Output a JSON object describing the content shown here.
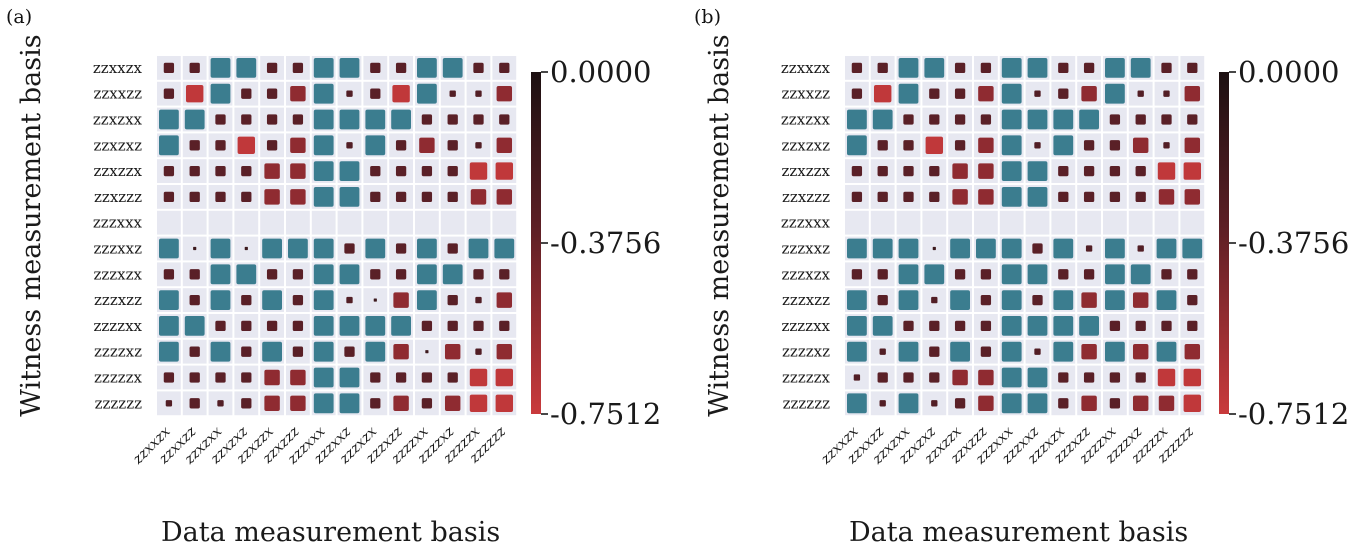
{
  "chart_data": [
    {
      "panel_label": "(a)",
      "type": "heatmap",
      "xlabel": "Data measurement basis",
      "ylabel": "Witness measurement basis",
      "x_tick_labels": [
        "ZZXXZX",
        "ZZXXZZ",
        "ZZXZXX",
        "ZZXZXZ",
        "ZZXZZX",
        "ZZXZZZ",
        "ZZZXXX",
        "ZZZXXZ",
        "ZZZXZX",
        "ZZZXZZ",
        "ZZZZXX",
        "ZZZZXZ",
        "ZZZZZX",
        "ZZZZZZ"
      ],
      "y_tick_labels": [
        "ZZXXZX",
        "ZZXXZZ",
        "ZZXZXX",
        "ZZXZXZ",
        "ZZXZZX",
        "ZZXZZZ",
        "ZZZXXX",
        "ZZZXXZ",
        "ZZZXZX",
        "ZZZXZZ",
        "ZZZZXX",
        "ZZZZXZ",
        "ZZZZZX",
        "ZZZZZZ"
      ],
      "colorbar": {
        "min": -0.7512,
        "max": 0.0,
        "tick_labels": [
          "0.0000",
          "-0.3756",
          "-0.7512"
        ]
      },
      "positive_color": "#3b7d8f",
      "cells": [
        [
          "n",
          "n",
          "b",
          "b",
          "n",
          "n",
          "b",
          "b",
          "n",
          "n",
          "b",
          "b",
          "n",
          "n"
        ],
        [
          "n",
          "R",
          "b",
          "n",
          "n",
          "r",
          "b",
          "s",
          "n",
          "R",
          "b",
          "s",
          "s",
          "r"
        ],
        [
          "b",
          "b",
          "n",
          "n",
          "n",
          "n",
          "b",
          "b",
          "b",
          "b",
          "n",
          "n",
          "n",
          "n"
        ],
        [
          "b",
          "n",
          "n",
          "R",
          "n",
          "r",
          "b",
          "s",
          "b",
          "n",
          "r",
          "n",
          "s",
          "r"
        ],
        [
          "n",
          "n",
          "n",
          "n",
          "r",
          "r",
          "b",
          "b",
          "n",
          "n",
          "n",
          "n",
          "R",
          "R"
        ],
        [
          "n",
          "n",
          "n",
          "n",
          "r",
          "r",
          "b",
          "b",
          "n",
          "n",
          "n",
          "n",
          "r",
          "r"
        ],
        [
          "",
          "",
          "",
          "",
          "",
          "",
          "",
          "",
          "",
          "",
          "",
          "",
          "",
          ""
        ],
        [
          "b",
          "x",
          "b",
          "x",
          "b",
          "b",
          "b",
          "n",
          "b",
          "n",
          "b",
          "n",
          "b",
          "b"
        ],
        [
          "n",
          "n",
          "b",
          "b",
          "n",
          "n",
          "b",
          "b",
          "n",
          "n",
          "b",
          "b",
          "n",
          "n"
        ],
        [
          "b",
          "n",
          "b",
          "n",
          "b",
          "n",
          "b",
          "s",
          "x",
          "r",
          "b",
          "n",
          "s",
          "r"
        ],
        [
          "b",
          "b",
          "n",
          "n",
          "n",
          "n",
          "b",
          "b",
          "b",
          "b",
          "n",
          "n",
          "n",
          "n"
        ],
        [
          "b",
          "n",
          "b",
          "n",
          "b",
          "n",
          "b",
          "n",
          "b",
          "r",
          "x",
          "r",
          "s",
          "r"
        ],
        [
          "n",
          "n",
          "n",
          "n",
          "r",
          "r",
          "b",
          "b",
          "n",
          "n",
          "n",
          "n",
          "R",
          "R"
        ],
        [
          "s",
          "n",
          "s",
          "n",
          "r",
          "r",
          "b",
          "b",
          "n",
          "r",
          "n",
          "r",
          "R",
          "R"
        ]
      ]
    },
    {
      "panel_label": "(b)",
      "type": "heatmap",
      "xlabel": "Data measurement basis",
      "ylabel": "Witness measurement basis",
      "x_tick_labels": [
        "ZZXXZX",
        "ZZXXZZ",
        "ZZXZXX",
        "ZZXZXZ",
        "ZZXZZX",
        "ZZXZZZ",
        "ZZZXXX",
        "ZZZXXZ",
        "ZZZXZX",
        "ZZZXZZ",
        "ZZZZXX",
        "ZZZZXZ",
        "ZZZZZX",
        "ZZZZZZ"
      ],
      "y_tick_labels": [
        "ZZXXZX",
        "ZZXXZZ",
        "ZZXZXX",
        "ZZXZXZ",
        "ZZXZZX",
        "ZZXZZZ",
        "ZZZXXX",
        "ZZZXXZ",
        "ZZZXZX",
        "ZZZXZZ",
        "ZZZZXX",
        "ZZZZXZ",
        "ZZZZZX",
        "ZZZZZZ"
      ],
      "colorbar": {
        "min": -0.7512,
        "max": 0.0,
        "tick_labels": [
          "0.0000",
          "-0.3756",
          "-0.7512"
        ]
      },
      "positive_color": "#3b7d8f",
      "cells": [
        [
          "n",
          "n",
          "b",
          "b",
          "n",
          "n",
          "b",
          "b",
          "n",
          "n",
          "b",
          "b",
          "n",
          "n"
        ],
        [
          "n",
          "R",
          "b",
          "n",
          "n",
          "r",
          "b",
          "s",
          "n",
          "r",
          "b",
          "s",
          "s",
          "r"
        ],
        [
          "b",
          "b",
          "n",
          "n",
          "n",
          "n",
          "b",
          "b",
          "b",
          "b",
          "n",
          "n",
          "n",
          "n"
        ],
        [
          "b",
          "n",
          "n",
          "R",
          "n",
          "r",
          "b",
          "s",
          "b",
          "n",
          "n",
          "r",
          "s",
          "r"
        ],
        [
          "n",
          "n",
          "n",
          "n",
          "r",
          "r",
          "b",
          "b",
          "n",
          "n",
          "n",
          "n",
          "R",
          "R"
        ],
        [
          "n",
          "n",
          "n",
          "n",
          "r",
          "r",
          "b",
          "b",
          "n",
          "n",
          "n",
          "n",
          "r",
          "r"
        ],
        [
          "",
          "",
          "",
          "",
          "",
          "",
          "",
          "",
          "",
          "",
          "",
          "",
          "",
          ""
        ],
        [
          "b",
          "b",
          "b",
          "x",
          "b",
          "b",
          "b",
          "n",
          "b",
          "s",
          "b",
          "s",
          "b",
          "b"
        ],
        [
          "n",
          "n",
          "b",
          "b",
          "n",
          "n",
          "b",
          "b",
          "n",
          "n",
          "b",
          "b",
          "n",
          "n"
        ],
        [
          "b",
          "n",
          "b",
          "s",
          "b",
          "n",
          "b",
          "n",
          "b",
          "r",
          "b",
          "r",
          "b",
          "n"
        ],
        [
          "b",
          "b",
          "n",
          "n",
          "n",
          "n",
          "b",
          "b",
          "b",
          "b",
          "n",
          "n",
          "n",
          "n"
        ],
        [
          "b",
          "s",
          "b",
          "n",
          "b",
          "n",
          "b",
          "s",
          "b",
          "r",
          "b",
          "r",
          "b",
          "r"
        ],
        [
          "s",
          "n",
          "n",
          "n",
          "r",
          "r",
          "b",
          "b",
          "n",
          "n",
          "n",
          "n",
          "R",
          "R"
        ],
        [
          "b",
          "s",
          "b",
          "s",
          "n",
          "r",
          "b",
          "b",
          "n",
          "r",
          "n",
          "r",
          "r",
          "R"
        ]
      ]
    }
  ],
  "cell_styles": {
    "b": {
      "size": 1.0,
      "color": "#3b7d8f"
    },
    "n": {
      "size": 0.52,
      "color": "#5a2027"
    },
    "s": {
      "size": 0.32,
      "color": "#521e25"
    },
    "x": {
      "size": 0.16,
      "color": "#3d1a1e"
    },
    "r": {
      "size": 0.78,
      "color": "#8f2b31"
    },
    "R": {
      "size": 0.88,
      "color": "#c0383a"
    }
  }
}
